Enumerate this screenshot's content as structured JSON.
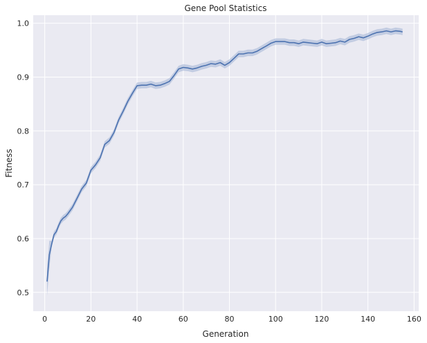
{
  "chart_data": {
    "type": "line",
    "title": "Gene Pool Statistics",
    "xlabel": "Generation",
    "ylabel": "Fitness",
    "xlim": [
      -5,
      162
    ],
    "ylim": [
      0.465,
      1.015
    ],
    "xticks": [
      0,
      20,
      40,
      60,
      80,
      100,
      120,
      140,
      160
    ],
    "yticks": [
      0.5,
      0.6,
      0.7,
      0.8,
      0.9,
      1.0
    ],
    "xtick_labels": [
      "0",
      "20",
      "40",
      "60",
      "80",
      "100",
      "120",
      "140",
      "160"
    ],
    "ytick_labels": [
      "0.5",
      "0.6",
      "0.7",
      "0.8",
      "0.9",
      "1.0"
    ],
    "grid": true,
    "line_color": "#4c72b0",
    "band_color": "#a1b3d6",
    "plot_background": "#eaeaf2",
    "series": [
      {
        "x": [
          1,
          2,
          3,
          4,
          5,
          6,
          7,
          8,
          9,
          10,
          12,
          14,
          16,
          18,
          20,
          22,
          24,
          26,
          28,
          30,
          32,
          34,
          36,
          38,
          40,
          42,
          44,
          46,
          48,
          50,
          52,
          54,
          56,
          58,
          60,
          62,
          64,
          66,
          68,
          70,
          72,
          74,
          76,
          78,
          80,
          82,
          84,
          86,
          88,
          90,
          92,
          94,
          96,
          98,
          100,
          102,
          104,
          106,
          108,
          110,
          112,
          114,
          116,
          118,
          120,
          122,
          124,
          126,
          128,
          130,
          132,
          134,
          136,
          138,
          140,
          142,
          144,
          146,
          148,
          150,
          152,
          154,
          155
        ],
        "y": [
          0.52,
          0.57,
          0.59,
          0.607,
          0.613,
          0.624,
          0.633,
          0.638,
          0.641,
          0.646,
          0.658,
          0.675,
          0.692,
          0.703,
          0.727,
          0.737,
          0.75,
          0.775,
          0.782,
          0.797,
          0.82,
          0.837,
          0.855,
          0.87,
          0.884,
          0.885,
          0.885,
          0.887,
          0.884,
          0.885,
          0.888,
          0.892,
          0.903,
          0.915,
          0.918,
          0.917,
          0.915,
          0.917,
          0.92,
          0.922,
          0.925,
          0.924,
          0.927,
          0.922,
          0.927,
          0.935,
          0.943,
          0.943,
          0.945,
          0.945,
          0.948,
          0.953,
          0.958,
          0.963,
          0.966,
          0.966,
          0.966,
          0.964,
          0.964,
          0.962,
          0.965,
          0.964,
          0.963,
          0.962,
          0.965,
          0.962,
          0.963,
          0.964,
          0.967,
          0.965,
          0.97,
          0.972,
          0.975,
          0.973,
          0.976,
          0.98,
          0.983,
          0.984,
          0.986,
          0.984,
          0.986,
          0.985,
          0.984
        ],
        "ci": 0.006
      }
    ]
  }
}
